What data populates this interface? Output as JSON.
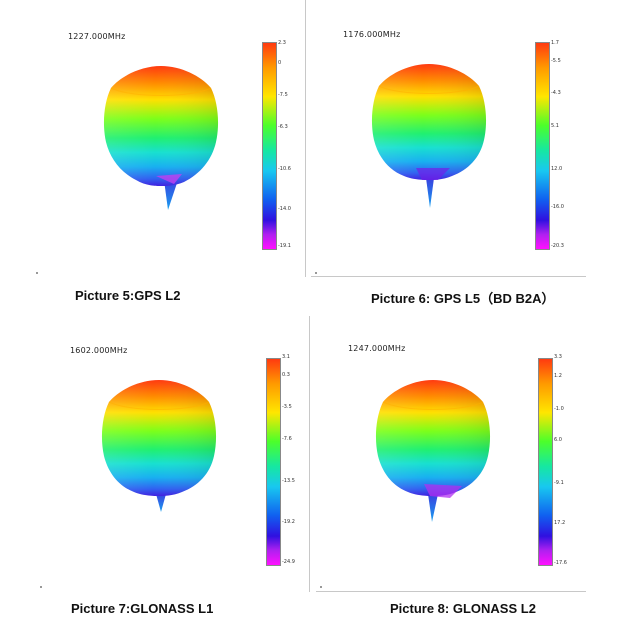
{
  "panels": [
    {
      "frequency": "1227.000MHz",
      "ticks": [
        "2.3",
        "0",
        "-7.5",
        "-6.3",
        "-10.6",
        "-14.0",
        "-19.1"
      ],
      "caption": "Picture  5:GPS L2"
    },
    {
      "frequency": "1176.000MHz",
      "ticks": [
        "1.7",
        "-5.5",
        "-4.3",
        "5.1",
        "12.0",
        "-16.0",
        "-20.3"
      ],
      "caption": "Picture  6: GPS L5（BD B2A）"
    },
    {
      "frequency": "1602.000MHz",
      "ticks": [
        "3.1",
        "0.3",
        "-3.5",
        "-7.6",
        "-13.5",
        "-19.2",
        "-24.9"
      ],
      "caption": "Picture  7:GLONASS L1"
    },
    {
      "frequency": "1247.000MHz",
      "ticks": [
        "3.3",
        "1.2",
        "-1.0",
        "6.0",
        "-9.1",
        "17.2",
        "-17.6"
      ],
      "caption": "Picture  8: GLONASS L2"
    }
  ],
  "colors": {
    "top": "#ff3a10",
    "mid": "#4cff2a",
    "cyan": "#18c8f0",
    "bottom": "#3010e0",
    "spike": "#1a7be0"
  }
}
